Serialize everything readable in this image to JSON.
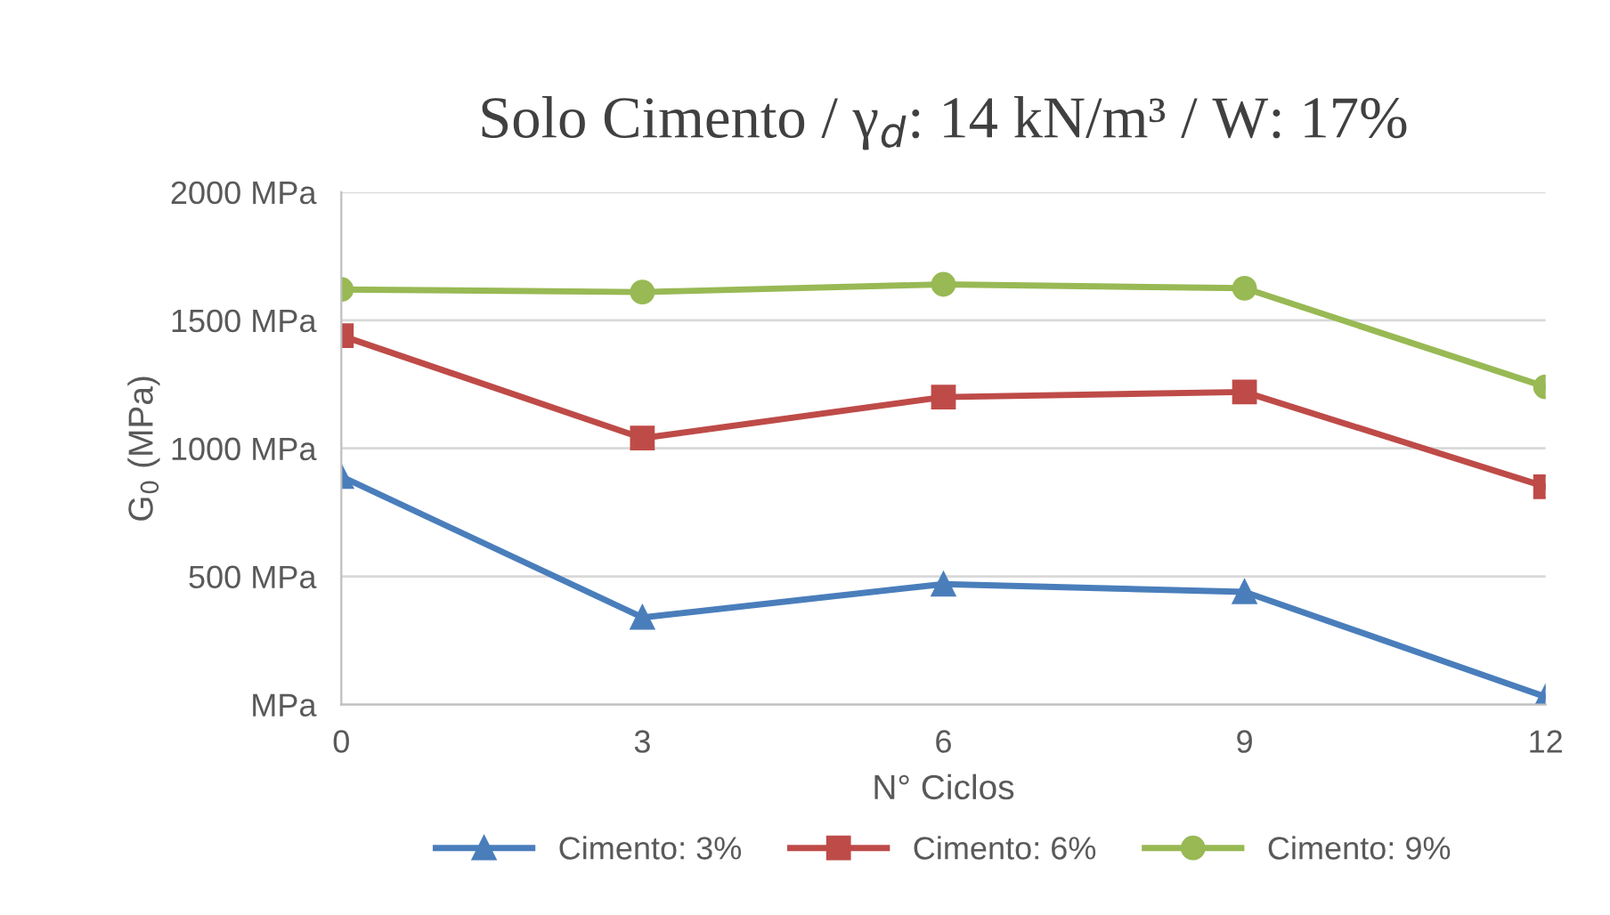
{
  "chart_data": {
    "type": "line",
    "title": "Solo Cimento / γ$_{d}$: 14 kN/m³ / W: 17%",
    "xlabel": "N° Ciclos",
    "ylabel": "G$_{0}$ (MPa)",
    "x": [
      0,
      3,
      6,
      9,
      12
    ],
    "xlim": [
      0,
      12
    ],
    "xticks": [
      0,
      3,
      6,
      9,
      12
    ],
    "ylim": [
      0,
      2000
    ],
    "yticks": [
      {
        "value": 0,
        "label": "MPa"
      },
      {
        "value": 500,
        "label": "500 MPa"
      },
      {
        "value": 1000,
        "label": "1000 MPa"
      },
      {
        "value": 1500,
        "label": "1500 MPa"
      },
      {
        "value": 2000,
        "label": "2000 MPa"
      }
    ],
    "grid": "y",
    "legend": "bottom",
    "line_style": "solid",
    "series": [
      {
        "name": "Cimento: 3%",
        "color": "#4a7ebb",
        "marker": "triangle",
        "values": [
          890,
          340,
          470,
          440,
          30
        ]
      },
      {
        "name": "Cimento: 6%",
        "color": "#be4b48",
        "marker": "square",
        "values": [
          1440,
          1040,
          1200,
          1220,
          850
        ]
      },
      {
        "name": "Cimento: 9%",
        "color": "#98b954",
        "marker": "circle",
        "values": [
          1620,
          1610,
          1640,
          1625,
          1240
        ]
      }
    ]
  }
}
